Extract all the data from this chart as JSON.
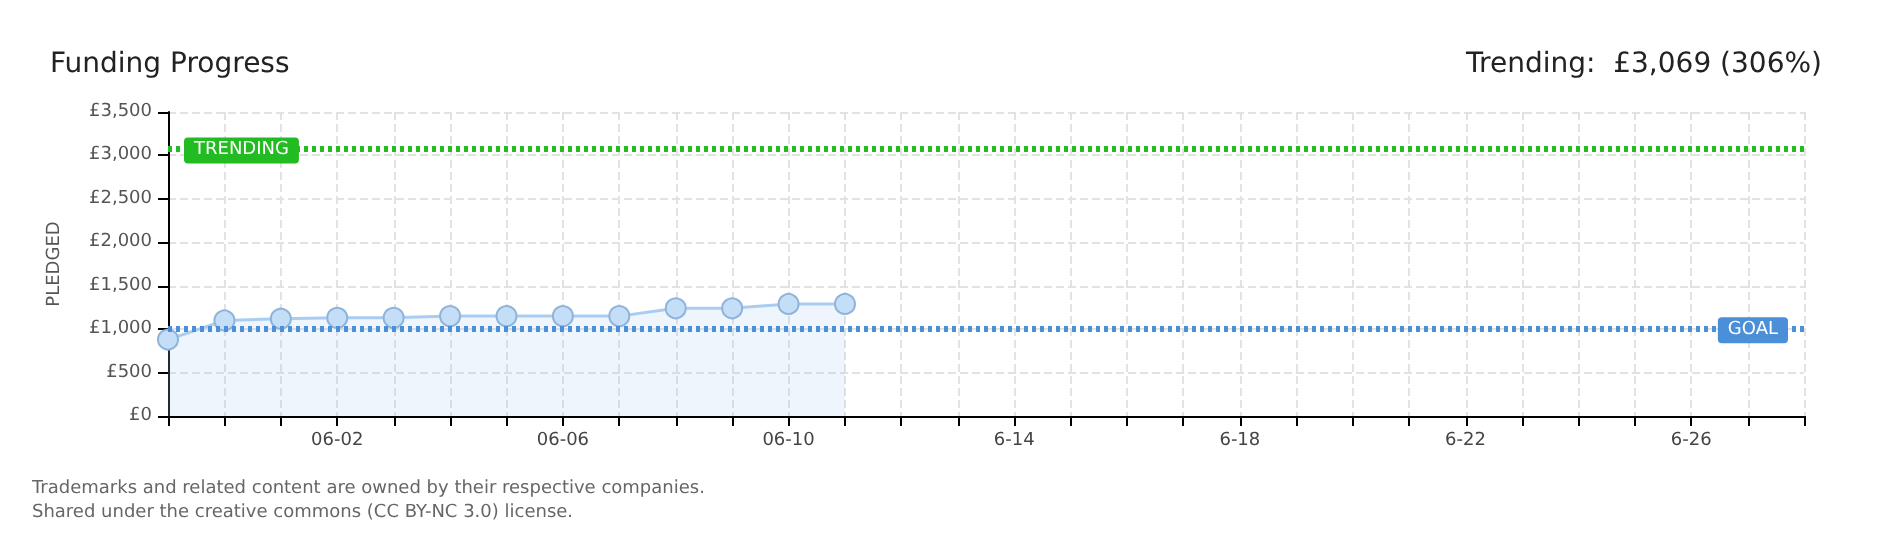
{
  "chart_data": {
    "type": "area",
    "title": "Funding Progress",
    "subtitle": "Trending:  £3,069 (306%)",
    "ylabel": "PLEDGED",
    "x": [
      "--05-30",
      "--05-31",
      "--06-01",
      "--06-02",
      "--06-03",
      "--06-04",
      "--06-05",
      "--06-06",
      "--06-07",
      "--06-08",
      "--06-09",
      "--06-10",
      "--06-11"
    ],
    "series": [
      {
        "color": "#a9cdf2",
        "values": [
          880,
          1100,
          1120,
          1130,
          1130,
          1150,
          1150,
          1150,
          1150,
          1240,
          1240,
          1290,
          1290
        ]
      }
    ],
    "xlim": [
      "--05-30",
      "--06-28"
    ],
    "xticks": [
      {
        "value": "--05-30",
        "label": null
      },
      {
        "value": "--05-31",
        "label": null
      },
      {
        "value": "--06-01",
        "label": null
      },
      {
        "value": "--06-02",
        "label": "06-02"
      },
      {
        "value": "--06-03",
        "label": null
      },
      {
        "value": "--06-04",
        "label": null
      },
      {
        "value": "--06-05",
        "label": null
      },
      {
        "value": "--06-06",
        "label": "06-06"
      },
      {
        "value": "--06-07",
        "label": null
      },
      {
        "value": "--06-08",
        "label": null
      },
      {
        "value": "--06-09",
        "label": null
      },
      {
        "value": "--06-10",
        "label": "06-10"
      },
      {
        "value": "--06-11",
        "label": null
      },
      {
        "value": "--06-12",
        "label": null
      },
      {
        "value": "--06-13",
        "label": null
      },
      {
        "value": "--06-14",
        "label": "6-14"
      },
      {
        "value": "--06-15",
        "label": null
      },
      {
        "value": "--06-16",
        "label": null
      },
      {
        "value": "--06-17",
        "label": null
      },
      {
        "value": "--06-18",
        "label": "6-18"
      },
      {
        "value": "--06-19",
        "label": null
      },
      {
        "value": "--06-20",
        "label": null
      },
      {
        "value": "--06-21",
        "label": null
      },
      {
        "value": "--06-22",
        "label": "6-22"
      },
      {
        "value": "--06-23",
        "label": null
      },
      {
        "value": "--06-24",
        "label": null
      },
      {
        "value": "--06-25",
        "label": null
      },
      {
        "value": "--06-26",
        "label": "6-26"
      },
      {
        "value": "--06-27",
        "label": null
      },
      {
        "value": "--06-28",
        "label": null
      }
    ],
    "ylim": [
      0,
      3500
    ],
    "yticks": [
      {
        "value": 0,
        "label": "£0"
      },
      {
        "value": 500,
        "label": "£500"
      },
      {
        "value": 1000,
        "label": "£1,000"
      },
      {
        "value": 1500,
        "label": "£1,500"
      },
      {
        "value": 2000,
        "label": "£2,000"
      },
      {
        "value": 2500,
        "label": "£2,500"
      },
      {
        "value": 3000,
        "label": "£3,000"
      },
      {
        "value": 3500,
        "label": "£3,500"
      }
    ],
    "ref_lines": [
      {
        "axis": "y",
        "value": 3069,
        "label": "TRENDING",
        "color": "#22bb22",
        "line_style": "dotted"
      },
      {
        "axis": "y",
        "value": 1000,
        "label": "GOAL",
        "color": "#4a8fd8",
        "line_style": "dotted"
      }
    ],
    "grid": true,
    "marker": "circle",
    "annotations": [
      "Trademarks and related content are owned by their respective companies.",
      "Shared under the creative commons (CC BY-NC 3.0) license."
    ]
  }
}
